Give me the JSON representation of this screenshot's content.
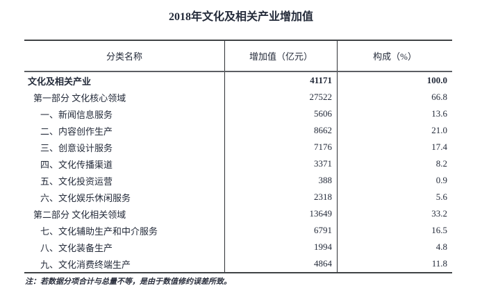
{
  "title": "2018年文化及相关产业增加值",
  "table": {
    "columns": {
      "category": "分类名称",
      "value": "增加值（亿元）",
      "share": "构成（%）"
    },
    "rows": [
      {
        "name": "文化及相关产业",
        "value": "41171",
        "share": "100.0"
      },
      {
        "name": "第一部分 文化核心领域",
        "value": "27522",
        "share": "66.8"
      },
      {
        "name": "一、新闻信息服务",
        "value": "5606",
        "share": "13.6"
      },
      {
        "name": "二、内容创作生产",
        "value": "8662",
        "share": "21.0"
      },
      {
        "name": "三、创意设计服务",
        "value": "7176",
        "share": "17.4"
      },
      {
        "name": "四、文化传播渠道",
        "value": "3371",
        "share": "8.2"
      },
      {
        "name": "五、文化投资运营",
        "value": "388",
        "share": "0.9"
      },
      {
        "name": "六、文化娱乐休闲服务",
        "value": "2318",
        "share": "5.6"
      },
      {
        "name": "第二部分 文化相关领域",
        "value": "13649",
        "share": "33.2"
      },
      {
        "name": "七、文化辅助生产和中介服务",
        "value": "6791",
        "share": "16.5"
      },
      {
        "name": "八、文化装备生产",
        "value": "1994",
        "share": "4.8"
      },
      {
        "name": "九、文化消费终端生产",
        "value": "4864",
        "share": "11.8"
      }
    ]
  },
  "note": "注：若数据分项合计与总量不等，是由于数值修约误差所致。",
  "colors": {
    "text": "#242b3a",
    "border_heavy": "#3f4245",
    "border_light": "#2d2f33",
    "background": "#ffffff"
  }
}
